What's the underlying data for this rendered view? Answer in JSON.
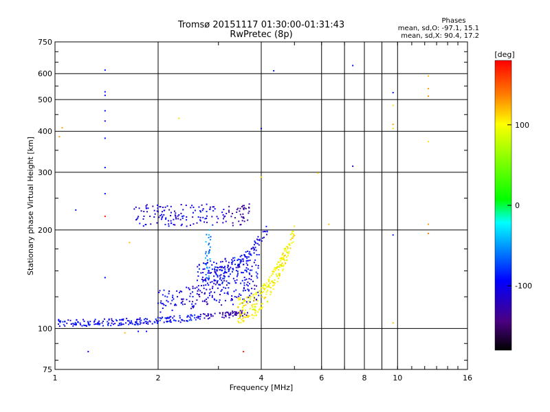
{
  "chart_data": {
    "type": "scatter",
    "title": "Tromsø 20151117 01:30:00-01:31:43",
    "subtitle": "RwPretec (8p)",
    "xlabel": "Frequency [MHz]",
    "ylabel": "Stationary phase Virtual Height [km]",
    "x_scale": "log",
    "y_scale": "log",
    "xlim": [
      1,
      16
    ],
    "ylim": [
      75,
      750
    ],
    "x_ticks": [
      1,
      2,
      4,
      6,
      8,
      10,
      16
    ],
    "x_tick_labels": [
      "1",
      "2",
      "4",
      "6",
      "8",
      "10",
      "16"
    ],
    "x_grid_major": [
      2,
      4,
      6,
      10
    ],
    "x_grid_minor": [
      7,
      8,
      9
    ],
    "y_ticks": [
      75,
      100,
      200,
      300,
      400,
      500,
      600,
      750
    ],
    "y_tick_labels": [
      "75",
      "100",
      "200",
      "300",
      "400",
      "500",
      "600",
      "750"
    ],
    "y_grid": [
      100,
      200,
      300,
      400,
      500,
      600
    ],
    "grid": true,
    "stats": {
      "heading": "Phases",
      "line_o": "mean, sd,O: -97.1, 15.1",
      "line_x": "mean, sd,X:  90.4, 17.2"
    },
    "colorbar": {
      "label": "[deg]",
      "range": [
        -180,
        180
      ],
      "ticks": [
        100,
        0,
        -100
      ],
      "tick_labels": [
        "100",
        "0",
        "-100"
      ]
    },
    "traces": [
      {
        "kind": "o_low",
        "x_range": [
          1.02,
          3.7
        ],
        "h_range": [
          104,
          112
        ],
        "phase": -100,
        "count": 260
      },
      {
        "kind": "o_mid",
        "x_range": [
          2.0,
          3.95
        ],
        "h_range": [
          112,
          140
        ],
        "phase": -110,
        "count": 160
      },
      {
        "kind": "o_mid2",
        "x_range": [
          2.6,
          3.95
        ],
        "h_range": [
          130,
          170
        ],
        "phase": -100,
        "count": 140
      },
      {
        "kind": "o_cusp",
        "x_range": [
          2.7,
          4.2
        ],
        "h_range": [
          140,
          200
        ],
        "phase": -105,
        "count": 120
      },
      {
        "kind": "f2_trace",
        "x_range": [
          1.7,
          3.7
        ],
        "h_range": [
          205,
          240
        ],
        "phase": -110,
        "count": 170
      },
      {
        "kind": "x_trace",
        "x_range": [
          3.4,
          5.0
        ],
        "h_range": [
          108,
          190
        ],
        "phase": 100,
        "count": 240
      },
      {
        "kind": "cyan_vertical",
        "x_range": [
          2.75,
          2.85
        ],
        "h_range": [
          140,
          200
        ],
        "phase": -60,
        "count": 30
      }
    ],
    "sparse_points": [
      {
        "x": 1.4,
        "h": 615,
        "phase": -100
      },
      {
        "x": 1.4,
        "h": 528,
        "phase": -100
      },
      {
        "x": 1.4,
        "h": 515,
        "phase": -100
      },
      {
        "x": 1.4,
        "h": 462,
        "phase": -100
      },
      {
        "x": 1.4,
        "h": 430,
        "phase": -100
      },
      {
        "x": 1.4,
        "h": 381,
        "phase": -100
      },
      {
        "x": 1.4,
        "h": 310,
        "phase": -100
      },
      {
        "x": 1.4,
        "h": 258,
        "phase": -100
      },
      {
        "x": 1.4,
        "h": 220,
        "phase": 175
      },
      {
        "x": 1.4,
        "h": 143,
        "phase": -100
      },
      {
        "x": 1.05,
        "h": 410,
        "phase": 130
      },
      {
        "x": 1.03,
        "h": 385,
        "phase": 130
      },
      {
        "x": 2.3,
        "h": 438,
        "phase": 110
      },
      {
        "x": 4.35,
        "h": 612,
        "phase": -100
      },
      {
        "x": 4.0,
        "h": 408,
        "phase": -100
      },
      {
        "x": 4.0,
        "h": 290,
        "phase": 110
      },
      {
        "x": 5.85,
        "h": 298,
        "phase": 110
      },
      {
        "x": 6.3,
        "h": 208,
        "phase": 120
      },
      {
        "x": 7.4,
        "h": 635,
        "phase": -100
      },
      {
        "x": 7.4,
        "h": 313,
        "phase": -120
      },
      {
        "x": 9.7,
        "h": 525,
        "phase": -100
      },
      {
        "x": 9.7,
        "h": 480,
        "phase": 110
      },
      {
        "x": 9.7,
        "h": 420,
        "phase": 130
      },
      {
        "x": 9.7,
        "h": 408,
        "phase": 110
      },
      {
        "x": 9.7,
        "h": 193,
        "phase": -90
      },
      {
        "x": 9.7,
        "h": 104,
        "phase": 120
      },
      {
        "x": 12.3,
        "h": 590,
        "phase": 120
      },
      {
        "x": 12.3,
        "h": 540,
        "phase": 130
      },
      {
        "x": 12.3,
        "h": 512,
        "phase": 135
      },
      {
        "x": 12.3,
        "h": 372,
        "phase": 110
      },
      {
        "x": 12.3,
        "h": 208,
        "phase": 130
      },
      {
        "x": 12.3,
        "h": 195,
        "phase": 140
      },
      {
        "x": 1.15,
        "h": 230,
        "phase": -100
      },
      {
        "x": 1.25,
        "h": 85,
        "phase": -100
      },
      {
        "x": 3.55,
        "h": 85,
        "phase": 175
      },
      {
        "x": 1.65,
        "h": 183,
        "phase": 120
      },
      {
        "x": 1.75,
        "h": 98,
        "phase": -100
      },
      {
        "x": 1.85,
        "h": 98,
        "phase": -100
      },
      {
        "x": 1.6,
        "h": 97,
        "phase": 120
      }
    ]
  }
}
